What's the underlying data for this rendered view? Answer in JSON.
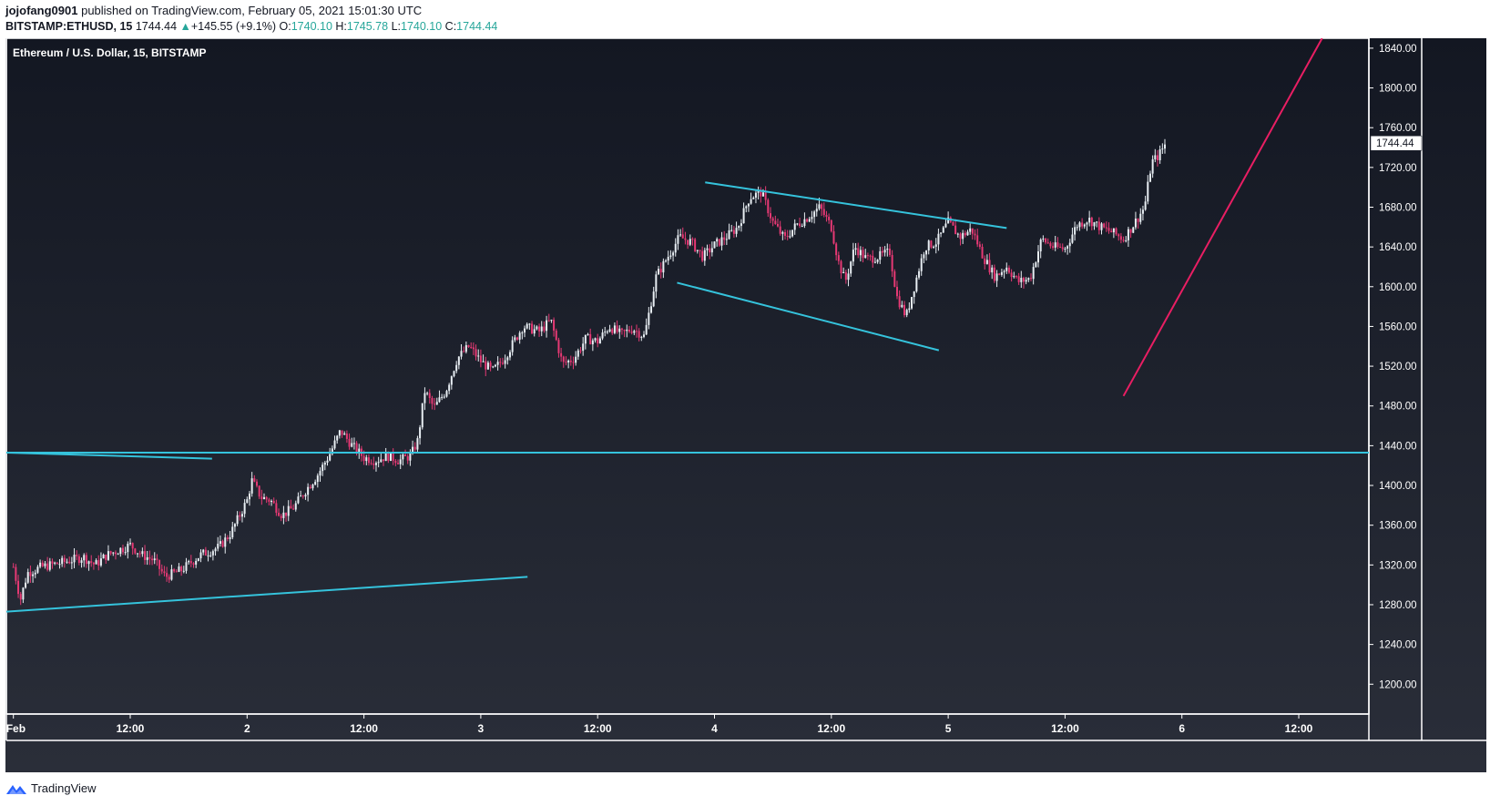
{
  "header": {
    "author": "jojofang0901",
    "published": "published on TradingView.com, February 05, 2021 15:01:30 UTC",
    "symbol": "BITSTAMP:ETHUSD, 15",
    "last": "1744.44",
    "change_arrow": "▲",
    "change": "+145.55 (+9.1%)",
    "o_label": "O:",
    "o": "1740.10",
    "h_label": "H:",
    "h": "1745.78",
    "l_label": "L:",
    "l": "1740.10",
    "c_label": "C:",
    "c": "1744.44"
  },
  "footer": {
    "brand": "TradingView",
    "logo_icon": "tradingview-logo-icon"
  },
  "colors": {
    "bg_top": "#131722",
    "bg_bottom": "#2a2e39",
    "up": "#e8eef3",
    "down": "#e63974",
    "trendline": "#35c3dc",
    "magenta_line": "#e91e63",
    "last_price_box": "#ffffff"
  },
  "chart_data": {
    "type": "candlestick",
    "title": "Ethereum / U.S. Dollar, 15, BITSTAMP",
    "ylim": [
      1170,
      1850
    ],
    "xlim": [
      -0.03,
      5.8
    ],
    "y_ticks": [
      "1840.00",
      "1800.00",
      "1760.00",
      "1720.00",
      "1680.00",
      "1640.00",
      "1600.00",
      "1560.00",
      "1520.00",
      "1480.00",
      "1440.00",
      "1400.00",
      "1360.00",
      "1320.00",
      "1280.00",
      "1240.00",
      "1200.00"
    ],
    "y_tick_values": [
      1840,
      1800,
      1760,
      1720,
      1680,
      1640,
      1600,
      1560,
      1520,
      1480,
      1440,
      1400,
      1360,
      1320,
      1280,
      1240,
      1200
    ],
    "x_ticks": [
      {
        "label": "Feb",
        "t": 0
      },
      {
        "label": "12:00",
        "t": 0.5
      },
      {
        "label": "2",
        "t": 1
      },
      {
        "label": "12:00",
        "t": 1.5
      },
      {
        "label": "3",
        "t": 2
      },
      {
        "label": "12:00",
        "t": 2.5
      },
      {
        "label": "4",
        "t": 3
      },
      {
        "label": "12:00",
        "t": 3.5
      },
      {
        "label": "5",
        "t": 4
      },
      {
        "label": "12:00",
        "t": 4.5
      },
      {
        "label": "6",
        "t": 5
      },
      {
        "label": "12:00",
        "t": 5.5
      }
    ],
    "last_price": "1744.44",
    "last_price_value": 1744.44,
    "price_path": [
      [
        0.0,
        1318
      ],
      [
        0.03,
        1285
      ],
      [
        0.06,
        1312
      ],
      [
        0.12,
        1318
      ],
      [
        0.2,
        1322
      ],
      [
        0.3,
        1328
      ],
      [
        0.35,
        1320
      ],
      [
        0.4,
        1330
      ],
      [
        0.5,
        1340
      ],
      [
        0.55,
        1330
      ],
      [
        0.6,
        1325
      ],
      [
        0.65,
        1308
      ],
      [
        0.72,
        1315
      ],
      [
        0.8,
        1330
      ],
      [
        0.88,
        1338
      ],
      [
        0.93,
        1352
      ],
      [
        1.0,
        1385
      ],
      [
        1.02,
        1405
      ],
      [
        1.06,
        1388
      ],
      [
        1.1,
        1385
      ],
      [
        1.15,
        1370
      ],
      [
        1.2,
        1378
      ],
      [
        1.25,
        1395
      ],
      [
        1.3,
        1410
      ],
      [
        1.35,
        1430
      ],
      [
        1.4,
        1455
      ],
      [
        1.45,
        1440
      ],
      [
        1.5,
        1428
      ],
      [
        1.55,
        1425
      ],
      [
        1.6,
        1430
      ],
      [
        1.65,
        1425
      ],
      [
        1.7,
        1430
      ],
      [
        1.73,
        1445
      ],
      [
        1.76,
        1495
      ],
      [
        1.8,
        1478
      ],
      [
        1.85,
        1495
      ],
      [
        1.9,
        1528
      ],
      [
        1.95,
        1540
      ],
      [
        2.0,
        1525
      ],
      [
        2.05,
        1515
      ],
      [
        2.1,
        1528
      ],
      [
        2.18,
        1560
      ],
      [
        2.25,
        1555
      ],
      [
        2.3,
        1566
      ],
      [
        2.35,
        1522
      ],
      [
        2.4,
        1528
      ],
      [
        2.45,
        1548
      ],
      [
        2.5,
        1545
      ],
      [
        2.55,
        1560
      ],
      [
        2.6,
        1552
      ],
      [
        2.65,
        1558
      ],
      [
        2.7,
        1550
      ],
      [
        2.75,
        1610
      ],
      [
        2.8,
        1630
      ],
      [
        2.85,
        1650
      ],
      [
        2.9,
        1645
      ],
      [
        2.95,
        1630
      ],
      [
        3.0,
        1642
      ],
      [
        3.05,
        1650
      ],
      [
        3.1,
        1660
      ],
      [
        3.15,
        1690
      ],
      [
        3.2,
        1695
      ],
      [
        3.25,
        1665
      ],
      [
        3.3,
        1648
      ],
      [
        3.35,
        1662
      ],
      [
        3.4,
        1670
      ],
      [
        3.45,
        1680
      ],
      [
        3.5,
        1660
      ],
      [
        3.53,
        1625
      ],
      [
        3.56,
        1605
      ],
      [
        3.6,
        1640
      ],
      [
        3.65,
        1628
      ],
      [
        3.7,
        1630
      ],
      [
        3.75,
        1635
      ],
      [
        3.78,
        1590
      ],
      [
        3.82,
        1570
      ],
      [
        3.86,
        1605
      ],
      [
        3.9,
        1640
      ],
      [
        3.95,
        1645
      ],
      [
        4.0,
        1665
      ],
      [
        4.05,
        1650
      ],
      [
        4.1,
        1658
      ],
      [
        4.15,
        1630
      ],
      [
        4.2,
        1610
      ],
      [
        4.25,
        1620
      ],
      [
        4.3,
        1605
      ],
      [
        4.35,
        1608
      ],
      [
        4.4,
        1648
      ],
      [
        4.45,
        1640
      ],
      [
        4.5,
        1638
      ],
      [
        4.55,
        1662
      ],
      [
        4.6,
        1668
      ],
      [
        4.65,
        1660
      ],
      [
        4.7,
        1655
      ],
      [
        4.75,
        1648
      ],
      [
        4.8,
        1665
      ],
      [
        4.84,
        1680
      ],
      [
        4.87,
        1725
      ],
      [
        4.9,
        1732
      ],
      [
        4.93,
        1744
      ]
    ],
    "drawings": [
      {
        "name": "upper-channel-line",
        "color": "trendline",
        "p1": [
          2.96,
          1705
        ],
        "p2": [
          4.25,
          1659
        ]
      },
      {
        "name": "lower-channel-line",
        "color": "trendline",
        "p1": [
          2.84,
          1604
        ],
        "p2": [
          3.96,
          1536
        ]
      },
      {
        "name": "horizontal-support-line",
        "color": "trendline",
        "p1": [
          -0.03,
          1433
        ],
        "p2": [
          5.8,
          1433
        ]
      },
      {
        "name": "short-descending-line",
        "color": "trendline",
        "p1": [
          -0.03,
          1433
        ],
        "p2": [
          0.85,
          1427
        ]
      },
      {
        "name": "lower-ascending-line",
        "color": "trendline",
        "p1": [
          -0.03,
          1273
        ],
        "p2": [
          2.2,
          1308
        ]
      },
      {
        "name": "projection-line",
        "color": "magenta_line",
        "p1": [
          4.75,
          1490
        ],
        "p2": [
          5.6,
          1850
        ]
      }
    ]
  }
}
